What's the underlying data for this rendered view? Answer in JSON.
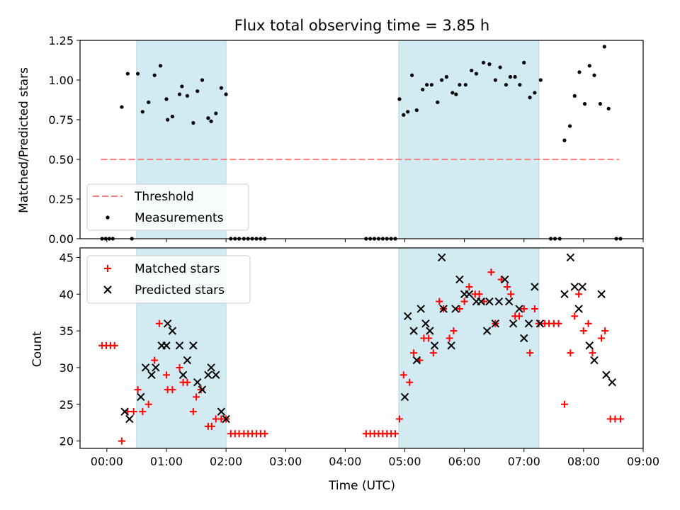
{
  "chart_data": [
    {
      "type": "scatter",
      "title": "Flux total observing time = 3.85 h",
      "xlabel": "",
      "ylabel": "Matched/Predicted stars",
      "xlim_hours": [
        -0.45,
        9.0
      ],
      "ylim": [
        0,
        1.25
      ],
      "yticks": [
        "0.00",
        "0.25",
        "0.50",
        "0.75",
        "1.00",
        "1.25"
      ],
      "legend_position": "lower-left",
      "shaded_intervals_hours": [
        [
          0.5,
          2.0
        ],
        [
          4.9,
          7.25
        ]
      ],
      "shade_color": "#add8e6",
      "threshold": {
        "name": "Threshold",
        "value": 0.5,
        "x_range_hours": [
          -0.1,
          8.6
        ],
        "color": "#ff7f7f"
      },
      "series": [
        {
          "name": "Measurements",
          "color": "#000000",
          "points": [
            [
              -0.08,
              0
            ],
            [
              -0.02,
              0
            ],
            [
              0.04,
              0
            ],
            [
              0.1,
              0
            ],
            [
              0.25,
              0.83
            ],
            [
              0.35,
              1.04
            ],
            [
              0.42,
              0
            ],
            [
              0.52,
              1.04
            ],
            [
              0.6,
              0.8
            ],
            [
              0.7,
              0.86
            ],
            [
              0.8,
              1.03
            ],
            [
              0.9,
              1.09
            ],
            [
              1.0,
              0.88
            ],
            [
              1.02,
              0.75
            ],
            [
              1.1,
              0.77
            ],
            [
              1.22,
              0.91
            ],
            [
              1.26,
              0.96
            ],
            [
              1.35,
              0.9
            ],
            [
              1.45,
              0.73
            ],
            [
              1.52,
              0.93
            ],
            [
              1.6,
              1.0
            ],
            [
              1.7,
              0.76
            ],
            [
              1.75,
              0.74
            ],
            [
              1.83,
              0.79
            ],
            [
              1.92,
              0.95
            ],
            [
              2.0,
              0.91
            ],
            [
              2.08,
              0
            ],
            [
              2.15,
              0
            ],
            [
              2.22,
              0
            ],
            [
              2.3,
              0
            ],
            [
              2.37,
              0
            ],
            [
              2.44,
              0
            ],
            [
              2.51,
              0
            ],
            [
              2.58,
              0
            ],
            [
              2.65,
              0
            ],
            [
              4.35,
              0
            ],
            [
              4.42,
              0
            ],
            [
              4.49,
              0
            ],
            [
              4.56,
              0
            ],
            [
              4.63,
              0
            ],
            [
              4.7,
              0
            ],
            [
              4.77,
              0
            ],
            [
              4.84,
              0
            ],
            [
              4.91,
              0.88
            ],
            [
              4.98,
              0.78
            ],
            [
              5.05,
              0.8
            ],
            [
              5.12,
              1.03
            ],
            [
              5.2,
              0.81
            ],
            [
              5.3,
              0.94
            ],
            [
              5.37,
              0.97
            ],
            [
              5.45,
              0.97
            ],
            [
              5.55,
              0.86
            ],
            [
              5.62,
              1.0
            ],
            [
              5.7,
              1.02
            ],
            [
              5.8,
              0.92
            ],
            [
              5.86,
              0.91
            ],
            [
              5.92,
              0.97
            ],
            [
              6.02,
              0.97
            ],
            [
              6.12,
              1.06
            ],
            [
              6.2,
              1.04
            ],
            [
              6.32,
              1.11
            ],
            [
              6.42,
              1.1
            ],
            [
              6.52,
              1.0
            ],
            [
              6.6,
              1.08
            ],
            [
              6.7,
              0.97
            ],
            [
              6.77,
              1.02
            ],
            [
              6.85,
              1.02
            ],
            [
              6.93,
              0.97
            ],
            [
              7.0,
              1.11
            ],
            [
              7.1,
              0.89
            ],
            [
              7.18,
              0.92
            ],
            [
              7.28,
              1.0
            ],
            [
              7.45,
              0
            ],
            [
              7.52,
              0
            ],
            [
              7.6,
              0
            ],
            [
              7.68,
              0.62
            ],
            [
              7.77,
              0.71
            ],
            [
              7.85,
              0.9
            ],
            [
              7.93,
              1.05
            ],
            [
              8.02,
              0.85
            ],
            [
              8.1,
              1.09
            ],
            [
              8.18,
              1.03
            ],
            [
              8.28,
              0.85
            ],
            [
              8.35,
              1.21
            ],
            [
              8.42,
              0.82
            ],
            [
              8.55,
              0
            ],
            [
              8.62,
              0
            ]
          ]
        }
      ]
    },
    {
      "type": "scatter",
      "title": "",
      "xlabel": "Time (UTC)",
      "ylabel": "Count",
      "xlim_hours": [
        -0.45,
        9.0
      ],
      "ylim": [
        19,
        46.3
      ],
      "yticks": [
        "20",
        "25",
        "30",
        "35",
        "40",
        "45"
      ],
      "xticks": [
        "00:00",
        "01:00",
        "02:00",
        "03:00",
        "04:00",
        "05:00",
        "06:00",
        "07:00",
        "08:00",
        "09:00"
      ],
      "legend_position": "upper-left",
      "shaded_intervals_hours": [
        [
          0.5,
          2.0
        ],
        [
          4.9,
          7.25
        ]
      ],
      "shade_color": "#add8e6",
      "series": [
        {
          "name": "Matched stars",
          "marker": "+",
          "color": "#ff0000",
          "points": [
            [
              -0.08,
              33
            ],
            [
              -0.01,
              33
            ],
            [
              0.06,
              33
            ],
            [
              0.13,
              33
            ],
            [
              0.25,
              20
            ],
            [
              0.35,
              24
            ],
            [
              0.45,
              24
            ],
            [
              0.52,
              27
            ],
            [
              0.6,
              24
            ],
            [
              0.7,
              25
            ],
            [
              0.8,
              31
            ],
            [
              0.88,
              36
            ],
            [
              1.0,
              29
            ],
            [
              1.02,
              27
            ],
            [
              1.1,
              27
            ],
            [
              1.22,
              30
            ],
            [
              1.28,
              28
            ],
            [
              1.35,
              28
            ],
            [
              1.45,
              24
            ],
            [
              1.5,
              26
            ],
            [
              1.58,
              27
            ],
            [
              1.7,
              22
            ],
            [
              1.76,
              22
            ],
            [
              1.83,
              23
            ],
            [
              1.92,
              23
            ],
            [
              2.0,
              23
            ],
            [
              2.08,
              21
            ],
            [
              2.15,
              21
            ],
            [
              2.22,
              21
            ],
            [
              2.3,
              21
            ],
            [
              2.37,
              21
            ],
            [
              2.44,
              21
            ],
            [
              2.51,
              21
            ],
            [
              2.58,
              21
            ],
            [
              2.65,
              21
            ],
            [
              4.35,
              21
            ],
            [
              4.42,
              21
            ],
            [
              4.49,
              21
            ],
            [
              4.56,
              21
            ],
            [
              4.63,
              21
            ],
            [
              4.7,
              21
            ],
            [
              4.77,
              21
            ],
            [
              4.84,
              21
            ],
            [
              4.91,
              23
            ],
            [
              4.98,
              29
            ],
            [
              5.08,
              28
            ],
            [
              5.15,
              32
            ],
            [
              5.25,
              31
            ],
            [
              5.32,
              34
            ],
            [
              5.4,
              34
            ],
            [
              5.48,
              32
            ],
            [
              5.58,
              39
            ],
            [
              5.65,
              38
            ],
            [
              5.75,
              34
            ],
            [
              5.82,
              35
            ],
            [
              5.92,
              38
            ],
            [
              6.0,
              39
            ],
            [
              6.08,
              41
            ],
            [
              6.18,
              40
            ],
            [
              6.25,
              40
            ],
            [
              6.33,
              39
            ],
            [
              6.45,
              43
            ],
            [
              6.52,
              36
            ],
            [
              6.62,
              42
            ],
            [
              6.72,
              41
            ],
            [
              6.78,
              40
            ],
            [
              6.85,
              37
            ],
            [
              6.92,
              37
            ],
            [
              7.0,
              38
            ],
            [
              7.1,
              32
            ],
            [
              7.18,
              38
            ],
            [
              7.25,
              36
            ],
            [
              7.35,
              36
            ],
            [
              7.42,
              36
            ],
            [
              7.5,
              36
            ],
            [
              7.58,
              36
            ],
            [
              7.68,
              25
            ],
            [
              7.78,
              32
            ],
            [
              7.85,
              37
            ],
            [
              7.92,
              40
            ],
            [
              8.0,
              35
            ],
            [
              8.08,
              36
            ],
            [
              8.15,
              32
            ],
            [
              8.3,
              34
            ],
            [
              8.36,
              35
            ],
            [
              8.45,
              23
            ],
            [
              8.53,
              23
            ],
            [
              8.62,
              23
            ]
          ]
        },
        {
          "name": "Predicted stars",
          "marker": "x",
          "color": "#000000",
          "points": [
            [
              0.3,
              24
            ],
            [
              0.38,
              23
            ],
            [
              0.57,
              26
            ],
            [
              0.65,
              30
            ],
            [
              0.75,
              29
            ],
            [
              0.82,
              30
            ],
            [
              0.92,
              33
            ],
            [
              1.0,
              33
            ],
            [
              1.02,
              36
            ],
            [
              1.1,
              35
            ],
            [
              1.22,
              33
            ],
            [
              1.28,
              29
            ],
            [
              1.35,
              31
            ],
            [
              1.45,
              33
            ],
            [
              1.52,
              28
            ],
            [
              1.6,
              27
            ],
            [
              1.7,
              29
            ],
            [
              1.75,
              30
            ],
            [
              1.83,
              29
            ],
            [
              1.92,
              24
            ],
            [
              2.0,
              23
            ],
            [
              5.0,
              26
            ],
            [
              5.05,
              37
            ],
            [
              5.15,
              35
            ],
            [
              5.2,
              31
            ],
            [
              5.27,
              38
            ],
            [
              5.35,
              36
            ],
            [
              5.42,
              35
            ],
            [
              5.5,
              33
            ],
            [
              5.62,
              45
            ],
            [
              5.65,
              38
            ],
            [
              5.78,
              33
            ],
            [
              5.85,
              38
            ],
            [
              5.92,
              42
            ],
            [
              6.0,
              40
            ],
            [
              6.08,
              40
            ],
            [
              6.2,
              39
            ],
            [
              6.28,
              39
            ],
            [
              6.38,
              35
            ],
            [
              6.42,
              39
            ],
            [
              6.52,
              36
            ],
            [
              6.58,
              39
            ],
            [
              6.68,
              42
            ],
            [
              6.75,
              39
            ],
            [
              6.82,
              36
            ],
            [
              6.92,
              38
            ],
            [
              7.0,
              34
            ],
            [
              7.08,
              36
            ],
            [
              7.18,
              41
            ],
            [
              7.27,
              36
            ],
            [
              7.68,
              40
            ],
            [
              7.78,
              45
            ],
            [
              7.85,
              41
            ],
            [
              7.92,
              38
            ],
            [
              7.98,
              41
            ],
            [
              8.1,
              33
            ],
            [
              8.18,
              31
            ],
            [
              8.3,
              40
            ],
            [
              8.38,
              29
            ],
            [
              8.48,
              28
            ]
          ]
        }
      ]
    }
  ]
}
